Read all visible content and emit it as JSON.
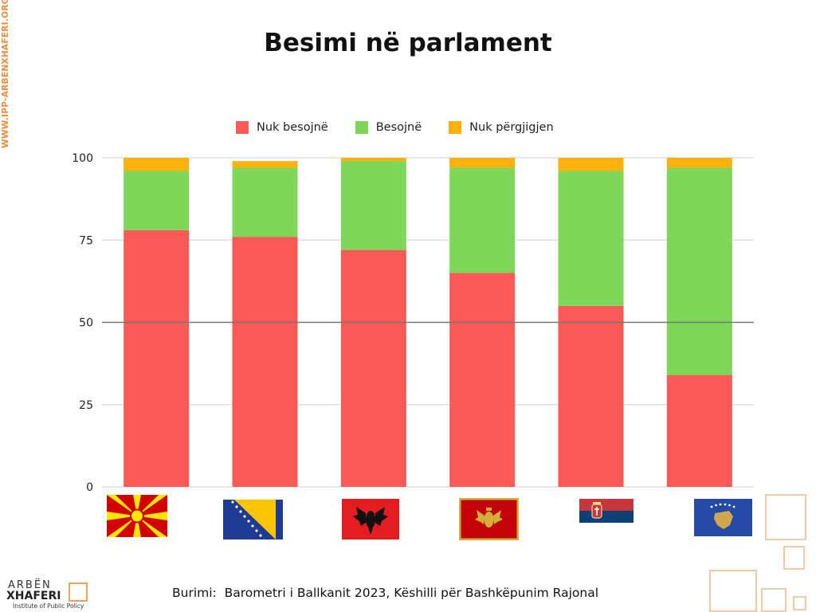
{
  "watermark": "WWW.IPP-ARBENXHAFERI.ORG",
  "chart_data": {
    "type": "bar",
    "stacked": true,
    "title": "Besimi në parlament",
    "categories": [
      "North Macedonia",
      "Bosnia and Herzegovina",
      "Albania",
      "Montenegro",
      "Serbia",
      "Kosovo"
    ],
    "series": [
      {
        "name": "Nuk besojnë",
        "color": "#f95a55",
        "values": [
          78,
          76,
          72,
          65,
          55,
          34
        ]
      },
      {
        "name": "Besojnë",
        "color": "#7fd75a",
        "values": [
          18,
          21,
          27,
          32,
          41,
          63
        ]
      },
      {
        "name": "Nuk përgjigjen",
        "color": "#fcb10f",
        "values": [
          4,
          2,
          1,
          3,
          4,
          3
        ]
      }
    ],
    "ylim": [
      0,
      100
    ],
    "yticks": [
      "0",
      "25",
      "50",
      "75",
      "100"
    ],
    "reference_line": 50,
    "grid": true,
    "legend": "top"
  },
  "source": "Burimi:  Barometri i Ballkanit 2023, Këshilli për Bashkëpunim Rajonal",
  "logo": {
    "top": "ARBËN",
    "main": "XHAFERI",
    "sub": "Institute of Public Policy"
  }
}
